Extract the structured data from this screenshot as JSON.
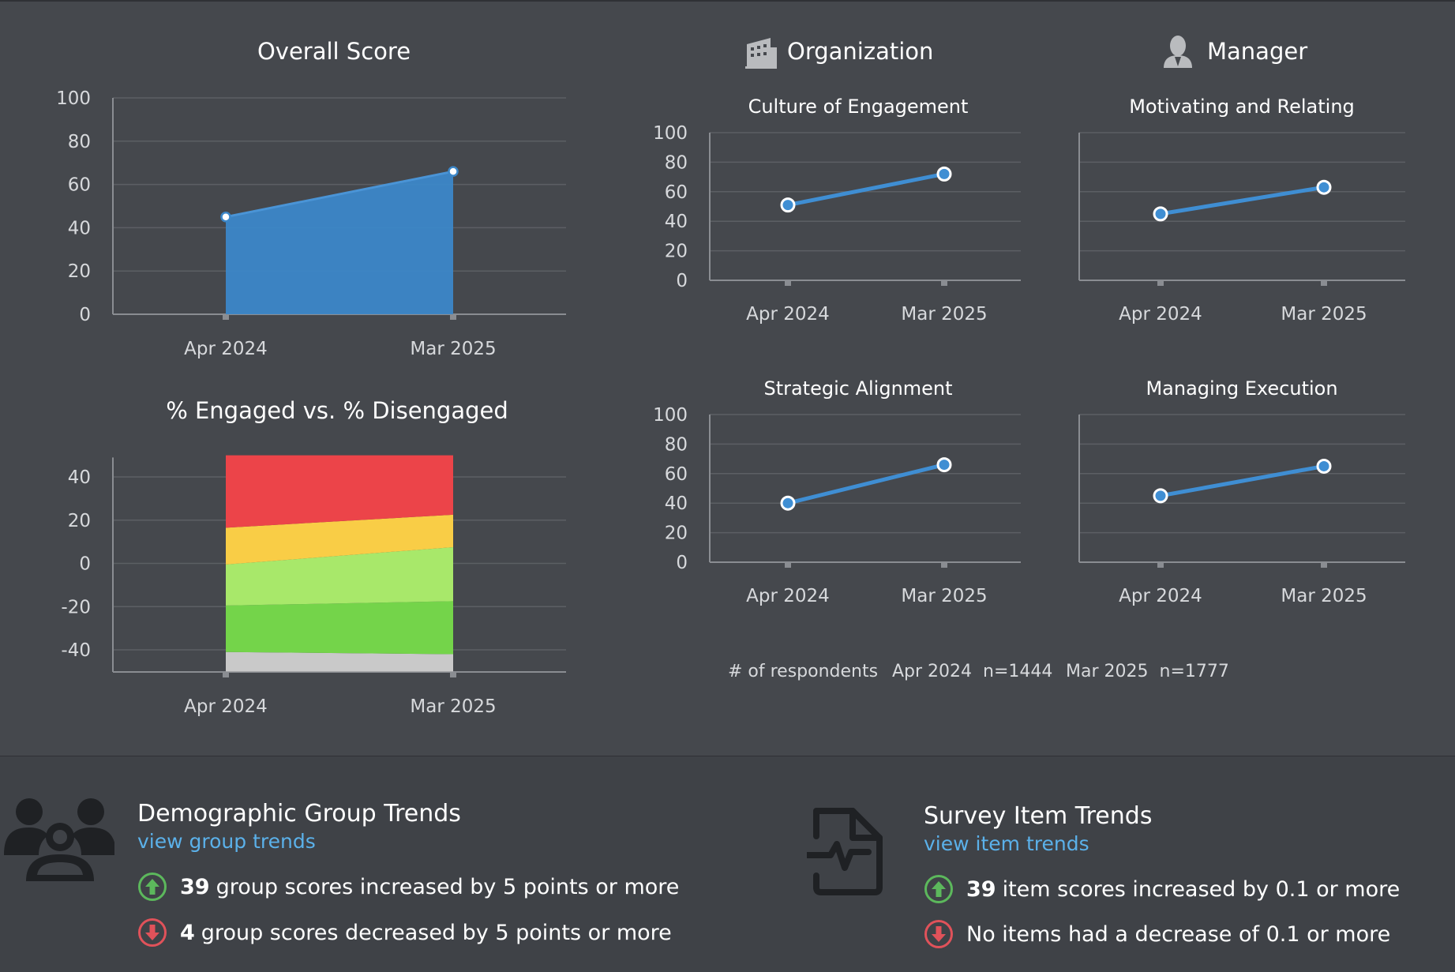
{
  "colors": {
    "background": "#45484d",
    "series_blue": "#3f8ed3",
    "link": "#5bb1ea",
    "up_green": "#5cb85c",
    "down_red": "#e0525a",
    "engagement_bands": [
      "#c9c9c9",
      "#74d44a",
      "#a8e86a",
      "#f9cd46",
      "#ec4449"
    ]
  },
  "headers": {
    "organization": "Organization",
    "organization_icon": "building-icon",
    "manager": "Manager",
    "manager_icon": "person-icon"
  },
  "respondents": {
    "label": "# of respondents",
    "entries": [
      {
        "period": "Apr 2024",
        "n": "n=1444"
      },
      {
        "period": "Mar 2025",
        "n": "n=1777"
      }
    ]
  },
  "demographic": {
    "icon": "group-icon",
    "title": "Demographic Group Trends",
    "link": "view group trends",
    "increase_count": "39",
    "increase_text": "group scores increased by 5 points or more",
    "decrease_count": "4",
    "decrease_text": "group scores decreased by 5 points or more"
  },
  "survey": {
    "icon": "document-pulse-icon",
    "title": "Survey Item Trends",
    "link": "view item trends",
    "increase_count": "39",
    "increase_text": "item scores increased by 0.1 or more",
    "decrease_text": "No items had a decrease of 0.1 or more"
  },
  "chart_data": [
    {
      "id": "overall",
      "type": "area",
      "title": "Overall Score",
      "categories": [
        "Apr 2024",
        "Mar 2025"
      ],
      "series": [
        {
          "values": [
            45,
            66
          ]
        }
      ],
      "yticks": [
        0,
        20,
        40,
        60,
        80,
        100
      ],
      "ylim": [
        0,
        100
      ],
      "grid": true
    },
    {
      "id": "engaged",
      "type": "area",
      "stacked": true,
      "title": "% Engaged vs. % Disengaged",
      "categories": [
        "Apr 2024",
        "Mar 2025"
      ],
      "yticks": [
        40,
        20,
        0,
        -20,
        -40
      ],
      "ylim": [
        -50,
        50
      ],
      "grid": true,
      "bands": [
        {
          "color": "#c9c9c9",
          "lower": [
            -50,
            -50
          ],
          "upper": [
            -41,
            -42
          ]
        },
        {
          "color": "#74d44a",
          "lower": [
            -41,
            -42
          ],
          "upper": [
            -19.5,
            -17.5
          ]
        },
        {
          "color": "#a8e86a",
          "lower": [
            -19.5,
            -17.5
          ],
          "upper": [
            -0.5,
            7.5
          ]
        },
        {
          "color": "#f9cd46",
          "lower": [
            -0.5,
            7.5
          ],
          "upper": [
            16.5,
            22.5
          ]
        },
        {
          "color": "#ec4449",
          "lower": [
            16.5,
            22.5
          ],
          "upper": [
            50,
            50
          ]
        }
      ]
    },
    {
      "id": "culture",
      "type": "line",
      "title": "Culture of Engagement",
      "categories": [
        "Apr 2024",
        "Mar 2025"
      ],
      "series": [
        {
          "values": [
            51,
            72
          ]
        }
      ],
      "yticks": [
        0,
        20,
        40,
        60,
        80,
        100
      ],
      "ylim": [
        0,
        100
      ],
      "grid": true
    },
    {
      "id": "motivating",
      "type": "line",
      "title": "Motivating and Relating",
      "categories": [
        "Apr 2024",
        "Mar 2025"
      ],
      "series": [
        {
          "values": [
            45,
            63
          ]
        }
      ],
      "ylim": [
        0,
        100
      ],
      "grid": true
    },
    {
      "id": "strategic",
      "type": "line",
      "title": "Strategic Alignment",
      "categories": [
        "Apr 2024",
        "Mar 2025"
      ],
      "series": [
        {
          "values": [
            40,
            66
          ]
        }
      ],
      "yticks": [
        0,
        20,
        40,
        60,
        80,
        100
      ],
      "ylim": [
        0,
        100
      ],
      "grid": true
    },
    {
      "id": "managing",
      "type": "line",
      "title": "Managing Execution",
      "categories": [
        "Apr 2024",
        "Mar 2025"
      ],
      "series": [
        {
          "values": [
            45,
            65
          ]
        }
      ],
      "ylim": [
        0,
        100
      ],
      "grid": true
    }
  ]
}
